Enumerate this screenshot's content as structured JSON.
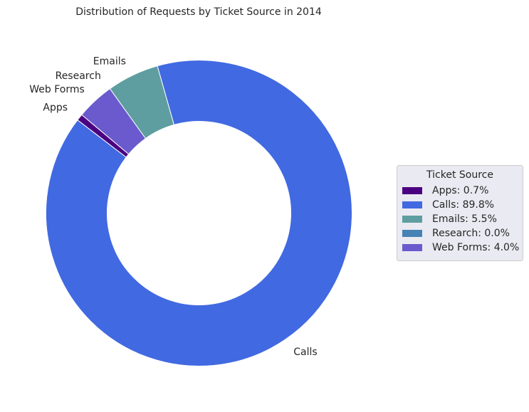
{
  "chart_data": {
    "type": "pie",
    "variant": "donut",
    "title": "Distribution of Requests by Ticket Source in 2014",
    "categories": [
      "Apps",
      "Calls",
      "Emails",
      "Research",
      "Web Forms"
    ],
    "values": [
      0.7,
      89.8,
      5.5,
      0.0,
      4.0
    ],
    "unit": "%",
    "colors": [
      "#4b0082",
      "#4169e1",
      "#5f9ea0",
      "#4682b4",
      "#6a5acd"
    ],
    "legend": {
      "title": "Ticket Source",
      "placement": "right",
      "entries": [
        "Apps: 0.7%",
        "Calls: 89.8%",
        "Emails: 5.5%",
        "Research: 0.0%",
        "Web Forms: 4.0%"
      ]
    }
  }
}
